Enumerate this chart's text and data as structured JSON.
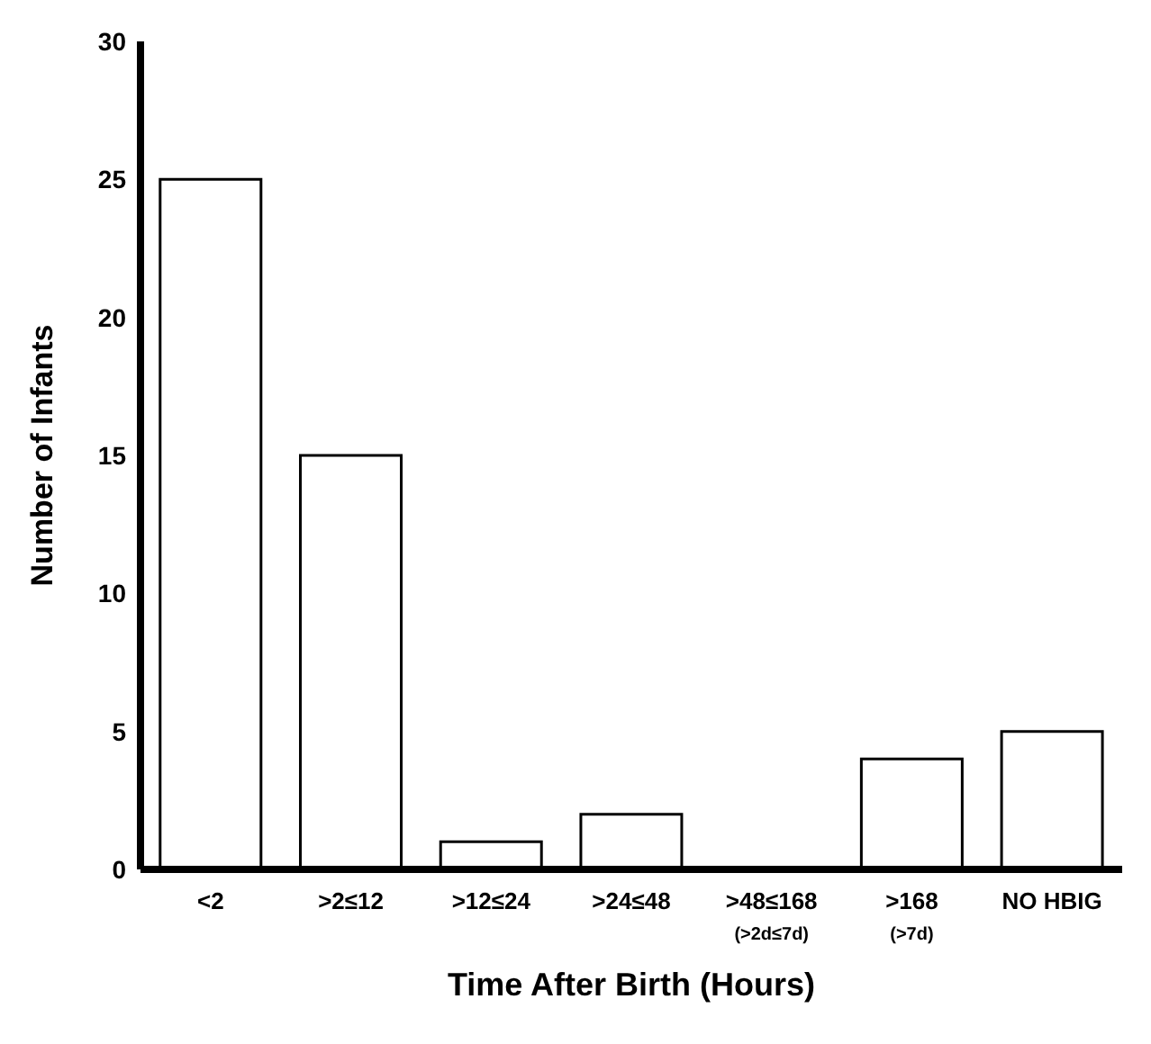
{
  "chart_data": {
    "type": "bar",
    "xlabel": "Time After Birth (Hours)",
    "ylabel": "Number of Infants",
    "categories": [
      "<2",
      ">2≤12",
      ">12≤24",
      ">24≤48",
      ">48≤168\n(>2d≤7d)",
      ">168\n(>7d)",
      "NO HBIG"
    ],
    "values": [
      25,
      15,
      1,
      2,
      0,
      4,
      5
    ],
    "color": "#ffffff",
    "ylim": [
      0,
      30
    ],
    "yticks": [
      0,
      5,
      10,
      15,
      20,
      25,
      30
    ],
    "grid": false
  }
}
